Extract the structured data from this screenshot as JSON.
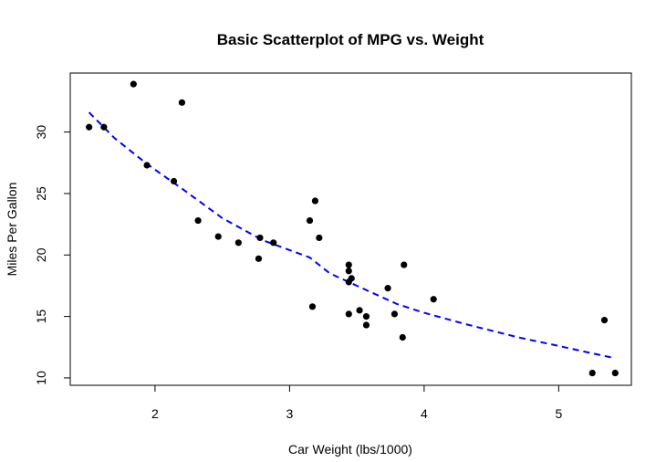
{
  "chart_data": {
    "type": "scatter",
    "title": "Basic Scatterplot of MPG vs. Weight",
    "xlabel": "Car Weight (lbs/1000)",
    "ylabel": "Miles Per Gallon",
    "xlim": [
      1.37,
      5.54
    ],
    "ylim": [
      9.4,
      34.8
    ],
    "xticks": [
      2,
      3,
      4,
      5
    ],
    "yticks": [
      10,
      15,
      20,
      25,
      30
    ],
    "grid": false,
    "points": [
      {
        "x": 1.51,
        "y": 30.4
      },
      {
        "x": 1.62,
        "y": 30.4
      },
      {
        "x": 1.84,
        "y": 33.9
      },
      {
        "x": 1.94,
        "y": 27.3
      },
      {
        "x": 2.14,
        "y": 26.0
      },
      {
        "x": 2.2,
        "y": 32.4
      },
      {
        "x": 2.32,
        "y": 22.8
      },
      {
        "x": 2.47,
        "y": 21.5
      },
      {
        "x": 2.62,
        "y": 21.0
      },
      {
        "x": 2.77,
        "y": 19.7
      },
      {
        "x": 2.78,
        "y": 21.4
      },
      {
        "x": 2.88,
        "y": 21.0
      },
      {
        "x": 3.15,
        "y": 22.8
      },
      {
        "x": 3.17,
        "y": 15.8
      },
      {
        "x": 3.19,
        "y": 24.4
      },
      {
        "x": 3.22,
        "y": 21.4
      },
      {
        "x": 3.44,
        "y": 18.7
      },
      {
        "x": 3.44,
        "y": 19.2
      },
      {
        "x": 3.44,
        "y": 17.8
      },
      {
        "x": 3.44,
        "y": 15.2
      },
      {
        "x": 3.46,
        "y": 18.1
      },
      {
        "x": 3.52,
        "y": 15.5
      },
      {
        "x": 3.57,
        "y": 15.0
      },
      {
        "x": 3.57,
        "y": 14.3
      },
      {
        "x": 3.73,
        "y": 17.3
      },
      {
        "x": 3.78,
        "y": 15.2
      },
      {
        "x": 3.84,
        "y": 13.3
      },
      {
        "x": 3.85,
        "y": 19.2
      },
      {
        "x": 4.07,
        "y": 16.4
      },
      {
        "x": 5.25,
        "y": 10.4
      },
      {
        "x": 5.34,
        "y": 14.7
      },
      {
        "x": 5.42,
        "y": 10.4
      }
    ],
    "smoother": {
      "style": "dashed",
      "points": [
        {
          "x": 1.51,
          "y": 31.6
        },
        {
          "x": 1.7,
          "y": 29.5
        },
        {
          "x": 1.94,
          "y": 27.4
        },
        {
          "x": 2.2,
          "y": 25.4
        },
        {
          "x": 2.5,
          "y": 23.0
        },
        {
          "x": 2.8,
          "y": 21.2
        },
        {
          "x": 3.0,
          "y": 20.4
        },
        {
          "x": 3.15,
          "y": 19.8
        },
        {
          "x": 3.3,
          "y": 18.5
        },
        {
          "x": 3.44,
          "y": 17.8
        },
        {
          "x": 3.6,
          "y": 17.0
        },
        {
          "x": 3.8,
          "y": 16.0
        },
        {
          "x": 4.0,
          "y": 15.3
        },
        {
          "x": 4.3,
          "y": 14.4
        },
        {
          "x": 4.7,
          "y": 13.3
        },
        {
          "x": 5.0,
          "y": 12.6
        },
        {
          "x": 5.25,
          "y": 12.0
        },
        {
          "x": 5.42,
          "y": 11.6
        }
      ]
    },
    "colors": {
      "points": "#000000",
      "smoother": "#0000ff",
      "frame": "#000000",
      "background": "#ffffff"
    }
  }
}
